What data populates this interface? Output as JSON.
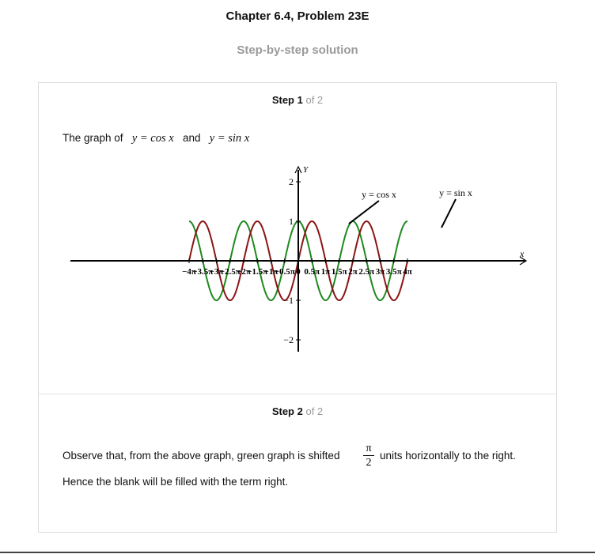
{
  "header": {
    "title": "Chapter 6.4, Problem 23E",
    "subtitle": "Step-by-step solution"
  },
  "step1": {
    "label": "Step 1",
    "of_text": "of 2",
    "intro_text": "The graph of",
    "eq1": "y = cos x",
    "and_text": "and",
    "eq2": "y = sin x"
  },
  "step2": {
    "label": "Step 2",
    "of_text": "of 2",
    "line1_before": "Observe that, from the above graph, green graph is shifted",
    "frac_num": "π",
    "frac_den": "2",
    "line1_after": "units horizontally to the right.",
    "line2": "Hence the blank will be filled with the term right."
  },
  "graph": {
    "x_axis_label": "x",
    "y_axis_label": "Y",
    "x_ticks": [
      "−4π",
      "−3.5π",
      "−3π",
      "−2.5π",
      "−2π",
      "−1.5π",
      "−1π",
      "−0.5π",
      "0",
      "0.5π",
      "1π",
      "1.5π",
      "2π",
      "2.5π",
      "3π",
      "3.5π",
      "4π"
    ],
    "y_ticks": [
      "2",
      "1",
      "−1",
      "−2"
    ],
    "annotation_cos": "y = cos x",
    "annotation_sin": "y = sin x",
    "colors": {
      "cos": "#1e8a1e",
      "sin": "#8b1414",
      "axis": "#000000"
    }
  },
  "chart_data": {
    "type": "line",
    "title": "",
    "xlabel": "x",
    "ylabel": "Y",
    "xlim": [
      -12.566,
      12.566
    ],
    "ylim": [
      -2,
      2
    ],
    "series": [
      {
        "name": "y = cos x",
        "color": "#1e8a1e",
        "function": "cos"
      },
      {
        "name": "y = sin x",
        "color": "#8b1414",
        "function": "sin"
      }
    ]
  }
}
